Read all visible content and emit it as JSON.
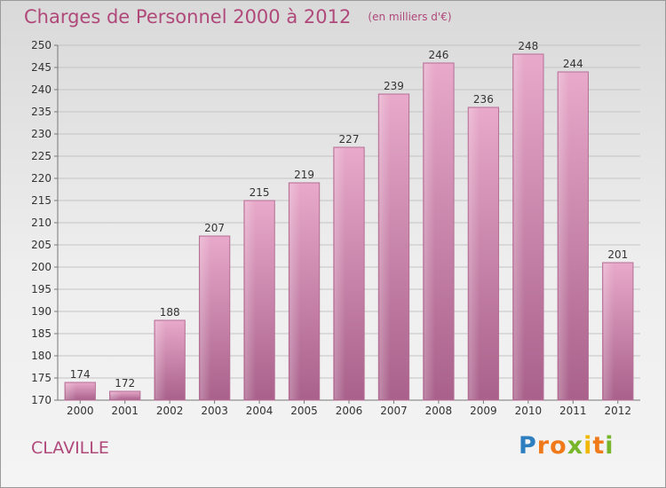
{
  "header": {
    "title": "Charges de Personnel 2000 à 2012",
    "subtitle": "(en milliers d'€)"
  },
  "footer": {
    "city": "CLAVILLE",
    "logo_letters": [
      "P",
      "r",
      "o",
      "x",
      "i",
      "t",
      "i"
    ],
    "logo_colors": [
      "#2d7fc0",
      "#f07a1a",
      "#f07a1a",
      "#77b52a",
      "#f2b800",
      "#f07a1a",
      "#77b52a"
    ]
  },
  "colors": {
    "bar_fill": "#c77da6",
    "bar_highlight": "#e8a9ca",
    "title_color": "#b0487a"
  },
  "chart_data": {
    "type": "bar",
    "title": "Charges de Personnel 2000 à 2012",
    "subtitle": "(en milliers d'€)",
    "categories": [
      "2000",
      "2001",
      "2002",
      "2003",
      "2004",
      "2005",
      "2006",
      "2007",
      "2008",
      "2009",
      "2010",
      "2011",
      "2012"
    ],
    "values": [
      174,
      172,
      188,
      207,
      215,
      219,
      227,
      239,
      246,
      236,
      248,
      244,
      201
    ],
    "ylim": [
      170,
      250
    ],
    "yticks": [
      170,
      175,
      180,
      185,
      190,
      195,
      200,
      205,
      210,
      215,
      220,
      225,
      230,
      235,
      240,
      245,
      250
    ],
    "grid": true,
    "data_labels": true
  }
}
